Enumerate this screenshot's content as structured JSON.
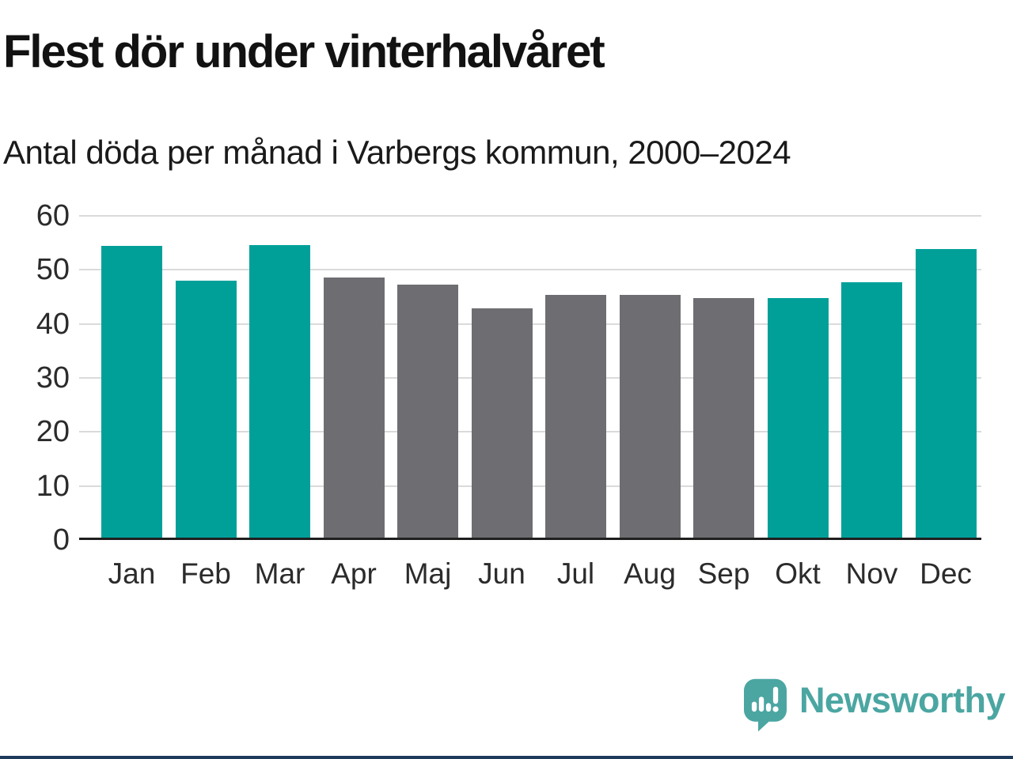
{
  "header": {
    "title": "Flest dör under vinterhalvåret",
    "subtitle": "Antal döda per månad i Varbergs kommun, 2000–2024"
  },
  "chart_data": {
    "type": "bar",
    "title": "Flest dör under vinterhalvåret",
    "subtitle": "Antal döda per månad i Varbergs kommun, 2000–2024",
    "categories": [
      "Jan",
      "Feb",
      "Mar",
      "Apr",
      "Maj",
      "Jun",
      "Jul",
      "Aug",
      "Sep",
      "Okt",
      "Nov",
      "Dec"
    ],
    "values": [
      54.0,
      47.5,
      54.2,
      48.2,
      46.8,
      42.4,
      45.0,
      45.0,
      44.4,
      44.4,
      47.2,
      53.4
    ],
    "bar_colors": [
      "#00A099",
      "#00A099",
      "#00A099",
      "#6E6D72",
      "#6E6D72",
      "#6E6D72",
      "#6E6D72",
      "#6E6D72",
      "#6E6D72",
      "#00A099",
      "#00A099",
      "#00A099"
    ],
    "highlight_color": "#00A099",
    "base_color": "#6E6D72",
    "xlabel": "",
    "ylabel": "",
    "ylim": [
      0,
      60
    ],
    "yticks": [
      0,
      10,
      20,
      30,
      40,
      50,
      60
    ],
    "grid": true,
    "legend": "none"
  },
  "footer": {
    "brand": "Newsworthy",
    "brand_color": "#4BA6A2",
    "logo_icon": "speech-bubble-bar-chart-icon",
    "bottom_rule_color": "#1D3A5C"
  }
}
